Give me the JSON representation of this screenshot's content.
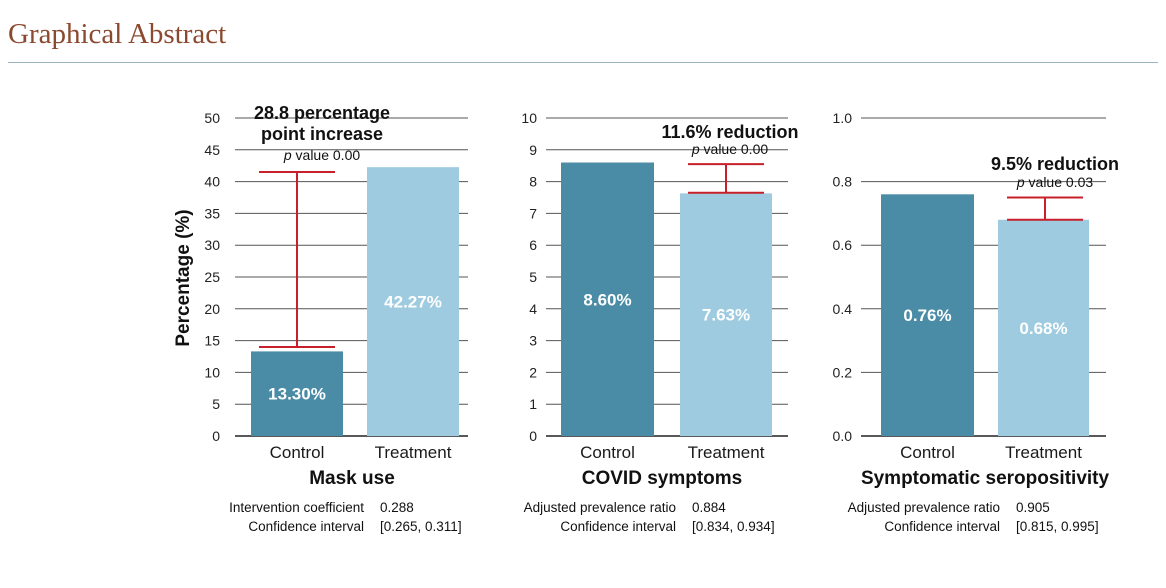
{
  "header": {
    "title": "Graphical Abstract"
  },
  "colors": {
    "control": "#4a8ba6",
    "treatment": "#9ecbe0",
    "ci": "#c8202a",
    "grid": "#555555"
  },
  "chart_data": [
    {
      "type": "bar",
      "title": "Mask use",
      "ylabel": "Percentage (%)",
      "ylim": [
        0,
        50
      ],
      "yticks": [
        "0",
        "5",
        "10",
        "15",
        "20",
        "25",
        "30",
        "35",
        "40",
        "45",
        "50"
      ],
      "categories": [
        "Control",
        "Treatment"
      ],
      "values": [
        13.3,
        42.27
      ],
      "value_labels": [
        "13.30%",
        "42.27%"
      ],
      "ci_bar": [
        14.0,
        41.5
      ],
      "annotation": {
        "line1": "28.8 percentage",
        "line2": "point increase",
        "p_prefix": "p",
        "p_text": " value 0.00"
      },
      "stats": [
        {
          "label": "Intervention coefficient",
          "value": "0.288"
        },
        {
          "label": "Confidence interval",
          "value": "[0.265, 0.311]"
        }
      ]
    },
    {
      "type": "bar",
      "title": "COVID symptoms",
      "ylabel": "",
      "ylim": [
        0,
        10
      ],
      "yticks": [
        "0",
        "1",
        "2",
        "3",
        "4",
        "5",
        "6",
        "7",
        "8",
        "9",
        "10"
      ],
      "categories": [
        "Control",
        "Treatment"
      ],
      "values": [
        8.6,
        7.63
      ],
      "value_labels": [
        "8.60%",
        "7.63%"
      ],
      "ci_bar": [
        7.65,
        8.55
      ],
      "annotation": {
        "line1": "11.6% reduction",
        "line2": "",
        "p_prefix": "p",
        "p_text": " value 0.00"
      },
      "stats": [
        {
          "label": "Adjusted prevalence ratio",
          "value": "0.884"
        },
        {
          "label": "Confidence interval",
          "value": "[0.834, 0.934]"
        }
      ]
    },
    {
      "type": "bar",
      "title": "Symptomatic seropositivity",
      "ylabel": "",
      "ylim": [
        0,
        1.0
      ],
      "yticks": [
        "0.0",
        "0.2",
        "0.4",
        "0.6",
        "0.8",
        "1.0"
      ],
      "categories": [
        "Control",
        "Treatment"
      ],
      "values": [
        0.76,
        0.68
      ],
      "value_labels": [
        "0.76%",
        "0.68%"
      ],
      "ci_bar": [
        0.68,
        0.75
      ],
      "annotation": {
        "line1": "9.5% reduction",
        "line2": "",
        "p_prefix": "p",
        "p_text": " value 0.03"
      },
      "stats": [
        {
          "label": "Adjusted prevalence ratio",
          "value": "0.905"
        },
        {
          "label": "Confidence interval",
          "value": "[0.815, 0.995]"
        }
      ]
    }
  ]
}
